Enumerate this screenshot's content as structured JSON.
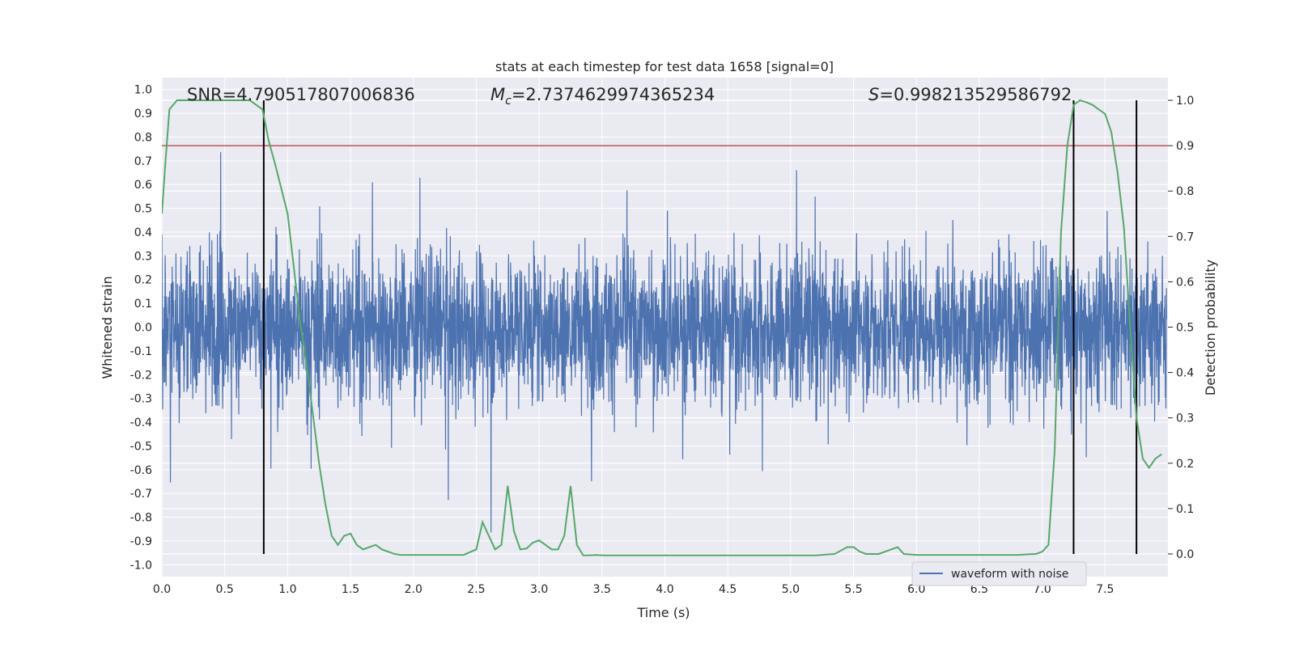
{
  "chart_data": {
    "type": "line",
    "title": "stats at each timestep for test data 1658 [signal=0]",
    "xlabel": "Time (s)",
    "ylabel": "Whitened strain",
    "y2label": "Detection probability",
    "xlim": [
      0.0,
      8.0
    ],
    "ylim": [
      -1.05,
      1.05
    ],
    "y2lim": [
      -0.05,
      1.05
    ],
    "x_ticks": [
      "0.0",
      "0.5",
      "1.0",
      "1.5",
      "2.0",
      "2.5",
      "3.0",
      "3.5",
      "4.0",
      "4.5",
      "5.0",
      "5.5",
      "6.0",
      "6.5",
      "7.0",
      "7.5"
    ],
    "y_ticks": [
      "1.0",
      "0.9",
      "0.8",
      "0.7",
      "0.6",
      "0.5",
      "0.4",
      "0.3",
      "0.2",
      "0.1",
      "0.0",
      "-0.1",
      "-0.2",
      "-0.3",
      "-0.4",
      "-0.5",
      "-0.6",
      "-0.7",
      "-0.8",
      "-0.9",
      "-1.0"
    ],
    "y2_ticks": [
      "1.0",
      "0.9",
      "0.8",
      "0.7",
      "0.6",
      "0.5",
      "0.4",
      "0.3",
      "0.2",
      "0.1",
      "0.0"
    ],
    "grid": true,
    "legend_position": "lower-right",
    "annotations": {
      "snr": "SNR=4.790517807006836",
      "mc_symbol": "M",
      "mc_sub": "c",
      "mc_value": "=2.7374629974365234",
      "s_symbol": "S",
      "s_value": "=0.998213529586792"
    },
    "series": [
      {
        "name": "waveform with noise",
        "color": "#4c72b0",
        "kind": "noise waveform, whitened strain between about -1.0 and 1.0"
      },
      {
        "color": "#55a868",
        "axis": "right",
        "x": [
          0.0,
          0.03,
          0.06,
          0.12,
          0.2,
          0.3,
          0.4,
          0.5,
          0.6,
          0.7,
          0.75,
          0.8,
          0.85,
          0.9,
          1.0,
          1.05,
          1.1,
          1.15,
          1.2,
          1.25,
          1.3,
          1.35,
          1.4,
          1.45,
          1.5,
          1.55,
          1.6,
          1.7,
          1.75,
          1.8,
          1.85,
          1.9,
          2.0,
          2.2,
          2.4,
          2.5,
          2.55,
          2.6,
          2.65,
          2.7,
          2.75,
          2.8,
          2.85,
          2.9,
          2.95,
          3.0,
          3.05,
          3.1,
          3.15,
          3.2,
          3.25,
          3.3,
          3.35,
          3.4,
          3.45,
          3.5,
          3.55,
          3.6,
          3.7,
          3.8,
          4.0,
          4.2,
          4.5,
          4.8,
          5.0,
          5.2,
          5.35,
          5.45,
          5.5,
          5.55,
          5.6,
          5.7,
          5.8,
          5.85,
          5.9,
          6.0,
          6.2,
          6.5,
          6.8,
          6.95,
          7.0,
          7.05,
          7.1,
          7.15,
          7.2,
          7.25,
          7.3,
          7.35,
          7.4,
          7.45,
          7.5,
          7.55,
          7.6,
          7.65,
          7.7,
          7.75,
          7.8,
          7.85,
          7.9,
          7.95
        ],
        "values": [
          0.75,
          0.87,
          0.98,
          1.0,
          1.0,
          1.0,
          1.0,
          1.0,
          1.0,
          1.0,
          0.99,
          0.98,
          0.91,
          0.86,
          0.75,
          0.63,
          0.51,
          0.42,
          0.31,
          0.2,
          0.11,
          0.04,
          0.02,
          0.04,
          0.045,
          0.02,
          0.01,
          0.02,
          0.01,
          0.005,
          0.0,
          -0.002,
          -0.002,
          -0.002,
          -0.002,
          0.01,
          0.07,
          0.04,
          0.01,
          0.02,
          0.15,
          0.05,
          0.01,
          0.012,
          0.025,
          0.03,
          0.02,
          0.01,
          0.01,
          0.04,
          0.15,
          0.02,
          -0.003,
          -0.003,
          -0.002,
          -0.003,
          -0.003,
          -0.003,
          -0.003,
          -0.003,
          -0.003,
          -0.003,
          -0.003,
          -0.003,
          -0.003,
          -0.003,
          0.0,
          0.015,
          0.015,
          0.005,
          0.0,
          0.0,
          0.01,
          0.015,
          0.0,
          -0.002,
          -0.002,
          -0.002,
          -0.002,
          0.0,
          0.005,
          0.02,
          0.23,
          0.71,
          0.9,
          0.99,
          1.0,
          0.996,
          0.99,
          0.98,
          0.97,
          0.93,
          0.84,
          0.72,
          0.5,
          0.3,
          0.21,
          0.19,
          0.21,
          0.22
        ]
      }
    ],
    "threshold": {
      "value": 0.9,
      "axis": "right",
      "color": "#c44e52"
    },
    "vlines": [
      0.81,
      7.25,
      7.75
    ],
    "colors": {
      "background": "#eaeaf2",
      "grid": "#ffffff",
      "text": "#262626",
      "vline": "#000000"
    }
  }
}
